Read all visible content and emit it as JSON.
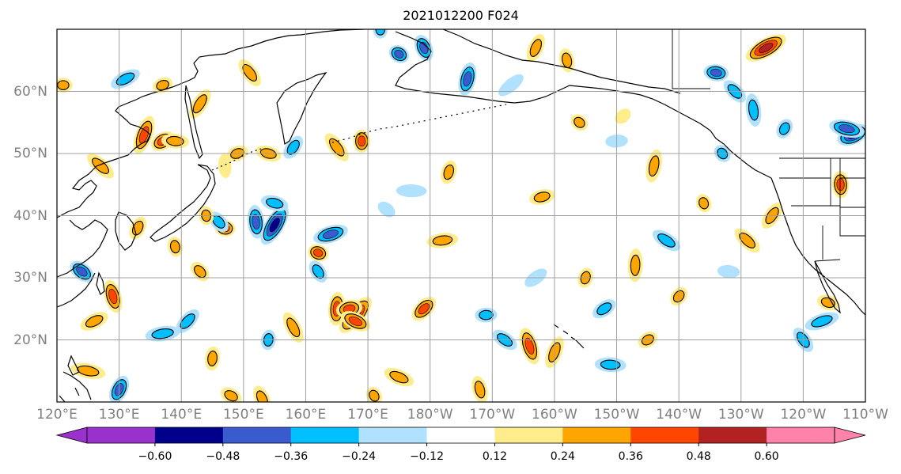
{
  "title": "2021012200 F024",
  "map": {
    "region": "North Pacific",
    "projection": "PlateCarree",
    "extent_lon": [
      120,
      250
    ],
    "extent_lat": [
      10,
      70
    ],
    "lat_ticks": [
      "20°N",
      "30°N",
      "40°N",
      "50°N",
      "60°N"
    ],
    "lon_ticks": [
      "120°E",
      "130°E",
      "140°E",
      "150°E",
      "160°E",
      "170°E",
      "180°W",
      "170°W",
      "160°W",
      "150°W",
      "140°W",
      "130°W",
      "120°W",
      "110°W"
    ],
    "grid": true,
    "features": [
      "coastlines",
      "country borders",
      "state borders"
    ]
  },
  "colorbar": {
    "orientation": "horizontal",
    "extend": "both",
    "levels": [
      -0.72,
      -0.6,
      -0.48,
      -0.36,
      -0.24,
      -0.12,
      0.12,
      0.24,
      0.36,
      0.48,
      0.6,
      0.72
    ],
    "colors": [
      "#9932cc",
      "#00008b",
      "#3a5bcd",
      "#00bfff",
      "#b0e2ff",
      "#ffffff",
      "#ffec8b",
      "#ffa500",
      "#ff4500",
      "#b22222",
      "#ff82ab"
    ],
    "tick_labels": [
      "−0.60",
      "−0.48",
      "−0.36",
      "−0.24",
      "−0.12",
      "0.12",
      "0.24",
      "0.36",
      "0.48",
      "0.60"
    ]
  },
  "cells": [
    {
      "lon": 121,
      "lat": 61,
      "v": 0.3
    },
    {
      "lon": 124,
      "lat": 31,
      "v": -0.4
    },
    {
      "lon": 129,
      "lat": 27,
      "v": 0.4
    },
    {
      "lon": 134,
      "lat": 53,
      "v": 0.4
    },
    {
      "lon": 137,
      "lat": 52,
      "v": 0.4
    },
    {
      "lon": 139,
      "lat": 52,
      "v": 0.3
    },
    {
      "lon": 127,
      "lat": 48,
      "v": 0.3
    },
    {
      "lon": 139,
      "lat": 35,
      "v": 0.3
    },
    {
      "lon": 130,
      "lat": 12,
      "v": -0.4
    },
    {
      "lon": 131,
      "lat": 62,
      "v": -0.3
    },
    {
      "lon": 147,
      "lat": 38,
      "v": 0.4
    },
    {
      "lon": 146,
      "lat": 39,
      "v": -0.3
    },
    {
      "lon": 152,
      "lat": 39,
      "v": -0.4
    },
    {
      "lon": 155,
      "lat": 38.5,
      "v": -0.5
    },
    {
      "lon": 149,
      "lat": 50,
      "v": 0.3
    },
    {
      "lon": 155,
      "lat": 42,
      "v": -0.3
    },
    {
      "lon": 165,
      "lat": 51,
      "v": 0.3
    },
    {
      "lon": 169,
      "lat": 52,
      "v": 0.4
    },
    {
      "lon": 158,
      "lat": 51,
      "v": -0.3
    },
    {
      "lon": 164,
      "lat": 37,
      "v": -0.4
    },
    {
      "lon": 162,
      "lat": 34,
      "v": 0.4
    },
    {
      "lon": 162,
      "lat": 31,
      "v": -0.3
    },
    {
      "lon": 165,
      "lat": 25,
      "v": 0.4
    },
    {
      "lon": 168,
      "lat": 24,
      "v": 0.5
    },
    {
      "lon": 167,
      "lat": 25,
      "v": 0.45
    },
    {
      "lon": 168,
      "lat": 23,
      "v": 0.4
    },
    {
      "lon": 158,
      "lat": 22,
      "v": 0.3
    },
    {
      "lon": 154,
      "lat": 20,
      "v": -0.3
    },
    {
      "lon": 179,
      "lat": 25,
      "v": 0.4
    },
    {
      "lon": 182,
      "lat": 36,
      "v": 0.3
    },
    {
      "lon": 175,
      "lat": 66,
      "v": -0.4
    },
    {
      "lon": 179,
      "lat": 67,
      "v": -0.4
    },
    {
      "lon": 186,
      "lat": 62,
      "v": -0.4
    },
    {
      "lon": 193,
      "lat": 61,
      "v": -0.2
    },
    {
      "lon": 189,
      "lat": 24,
      "v": -0.3
    },
    {
      "lon": 192,
      "lat": 20,
      "v": -0.3
    },
    {
      "lon": 196,
      "lat": 19,
      "v": 0.4
    },
    {
      "lon": 205,
      "lat": 30,
      "v": 0.3
    },
    {
      "lon": 208,
      "lat": 25,
      "v": -0.3
    },
    {
      "lon": 209,
      "lat": 16,
      "v": -0.3
    },
    {
      "lon": 204,
      "lat": 55,
      "v": 0.3
    },
    {
      "lon": 202,
      "lat": 65,
      "v": 0.3
    },
    {
      "lon": 197,
      "lat": 67,
      "v": 0.3
    },
    {
      "lon": 234,
      "lat": 67,
      "v": 0.5
    },
    {
      "lon": 226,
      "lat": 63,
      "v": -0.4
    },
    {
      "lon": 229,
      "lat": 60,
      "v": -0.3
    },
    {
      "lon": 232,
      "lat": 57,
      "v": -0.3
    },
    {
      "lon": 237,
      "lat": 54,
      "v": -0.3
    },
    {
      "lon": 248,
      "lat": 53,
      "v": -0.5
    },
    {
      "lon": 247,
      "lat": 54,
      "v": -0.4
    },
    {
      "lon": 227,
      "lat": 50,
      "v": -0.3
    },
    {
      "lon": 246,
      "lat": 45,
      "v": 0.4
    },
    {
      "lon": 235,
      "lat": 40,
      "v": 0.3
    },
    {
      "lon": 243,
      "lat": 23,
      "v": -0.3
    },
    {
      "lon": 244,
      "lat": 26,
      "v": 0.3
    },
    {
      "lon": 240,
      "lat": 20,
      "v": -0.3
    },
    {
      "lon": 213,
      "lat": 32,
      "v": 0.3
    },
    {
      "lon": 220,
      "lat": 27,
      "v": 0.3
    },
    {
      "lon": 198,
      "lat": 43,
      "v": 0.3
    },
    {
      "lon": 175,
      "lat": 14,
      "v": 0.3
    },
    {
      "lon": 171,
      "lat": 11,
      "v": 0.3
    },
    {
      "lon": 145,
      "lat": 17,
      "v": 0.3
    },
    {
      "lon": 141,
      "lat": 23,
      "v": -0.3
    },
    {
      "lon": 137,
      "lat": 21,
      "v": -0.3
    },
    {
      "lon": 148,
      "lat": 11,
      "v": 0.3
    },
    {
      "lon": 153,
      "lat": 10.5,
      "v": 0.3
    },
    {
      "lon": 216,
      "lat": 48,
      "v": 0.3
    },
    {
      "lon": 211,
      "lat": 56,
      "v": 0.2
    },
    {
      "lon": 210,
      "lat": 52,
      "v": -0.2
    },
    {
      "lon": 218,
      "lat": 36,
      "v": -0.3
    },
    {
      "lon": 224,
      "lat": 42,
      "v": 0.3
    },
    {
      "lon": 183,
      "lat": 47,
      "v": 0.3
    },
    {
      "lon": 197,
      "lat": 30,
      "v": -0.2
    },
    {
      "lon": 177,
      "lat": 44,
      "v": -0.2
    },
    {
      "lon": 173,
      "lat": 41,
      "v": -0.2
    },
    {
      "lon": 188,
      "lat": 12,
      "v": 0.3
    },
    {
      "lon": 200,
      "lat": 18,
      "v": 0.3
    },
    {
      "lon": 215,
      "lat": 20,
      "v": 0.3
    },
    {
      "lon": 228,
      "lat": 31,
      "v": -0.2
    },
    {
      "lon": 231,
      "lat": 36,
      "v": 0.3
    },
    {
      "lon": 144,
      "lat": 40,
      "v": 0.3
    },
    {
      "lon": 133,
      "lat": 38,
      "v": 0.3
    },
    {
      "lon": 126,
      "lat": 23,
      "v": 0.3
    },
    {
      "lon": 125,
      "lat": 15,
      "v": 0.3
    },
    {
      "lon": 143,
      "lat": 31,
      "v": 0.3
    },
    {
      "lon": 147,
      "lat": 48,
      "v": 0.2
    },
    {
      "lon": 143,
      "lat": 58,
      "v": 0.3
    },
    {
      "lon": 137,
      "lat": 61,
      "v": 0.3
    },
    {
      "lon": 154,
      "lat": 50,
      "v": 0.3
    },
    {
      "lon": 151,
      "lat": 63,
      "v": 0.3
    },
    {
      "lon": 172,
      "lat": 70,
      "v": -0.3
    }
  ]
}
